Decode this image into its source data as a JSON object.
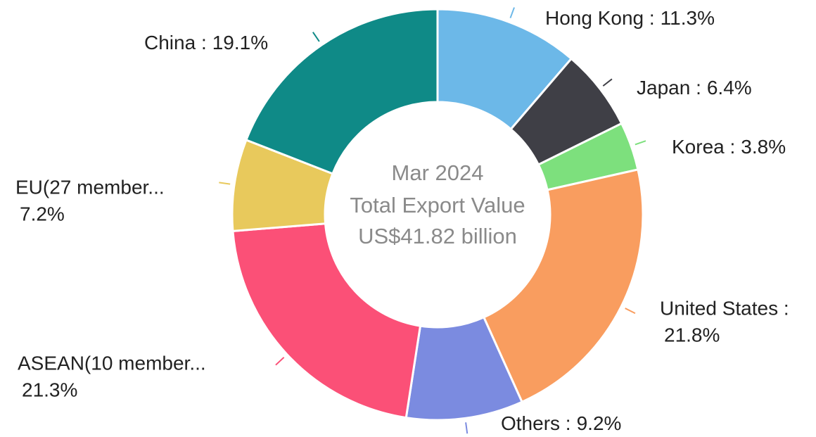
{
  "chart_data": {
    "type": "donut",
    "center_text": [
      "Mar 2024",
      "Total Export Value",
      "US$41.82 billion"
    ],
    "categories": [
      "Hong Kong :",
      "Japan :",
      "Korea :",
      "United States :",
      "Others :",
      "ASEAN(10 member...",
      "EU(27 member...",
      "China :"
    ],
    "values": [
      11.3,
      6.4,
      3.8,
      21.8,
      9.2,
      21.3,
      7.2,
      19.1
    ],
    "value_labels": [
      "11.3%",
      "6.4%",
      "3.8%",
      "21.8%",
      "9.2%",
      "21.3%",
      "7.2%",
      "19.1%"
    ],
    "colors": [
      "#6cb8e8",
      "#3f3f46",
      "#7de07d",
      "#f99d5f",
      "#7b8be0",
      "#fb5077",
      "#e8c95c",
      "#0f8a87"
    ]
  }
}
